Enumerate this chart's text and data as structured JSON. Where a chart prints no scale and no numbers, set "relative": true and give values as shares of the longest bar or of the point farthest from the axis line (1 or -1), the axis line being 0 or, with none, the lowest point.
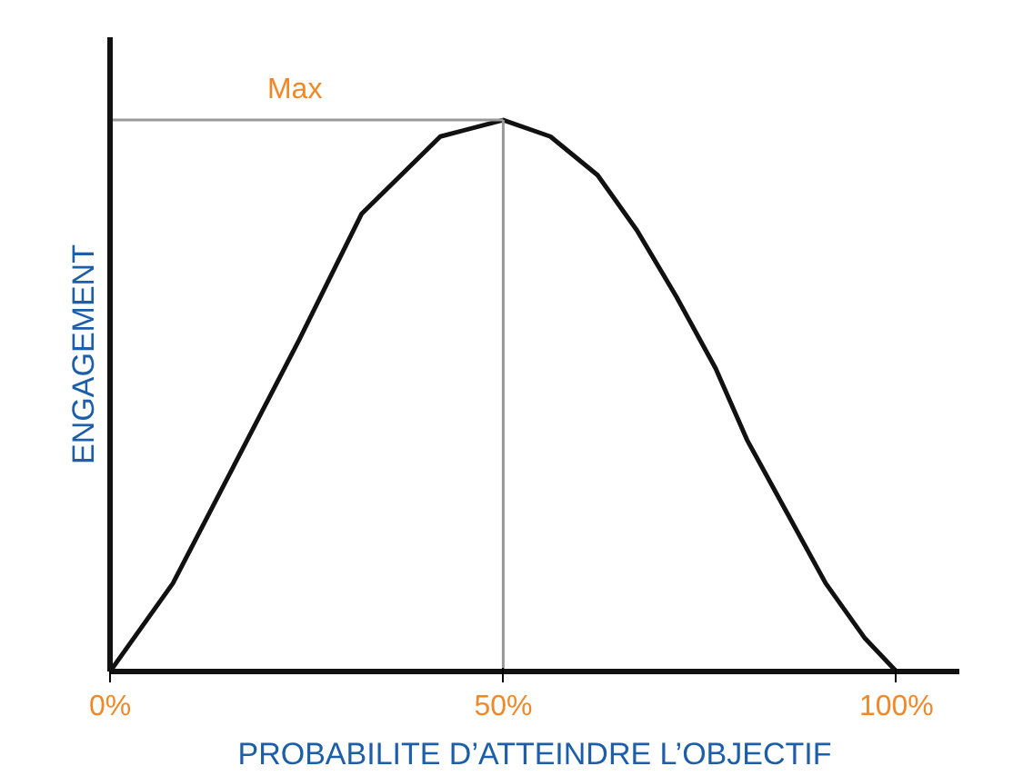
{
  "chart_data": {
    "type": "line",
    "relative": true,
    "xlabel": "PROBABILITE D’ATTEINDRE L’OBJECTIF",
    "ylabel": "ENGAGEMENT",
    "x": [
      0,
      8,
      16,
      24,
      32,
      42,
      50,
      56,
      62,
      67,
      72,
      77,
      81,
      86,
      91,
      96,
      100
    ],
    "series": [
      {
        "color": "#111111",
        "values": [
          0,
          0.16,
          0.38,
          0.6,
          0.83,
          0.97,
          1,
          0.97,
          0.9,
          0.8,
          0.68,
          0.55,
          0.42,
          0.29,
          0.16,
          0.06,
          0
        ]
      }
    ],
    "xlim": [
      0,
      108
    ],
    "xticks": [
      {
        "value": 0,
        "label": "0%"
      },
      {
        "value": 50,
        "label": "50%"
      },
      {
        "value": 100,
        "label": "100%"
      }
    ],
    "ref_lines": [
      {
        "axis": "y",
        "value": 1,
        "label": "Max",
        "color": "#999999"
      },
      {
        "axis": "x",
        "value": 50,
        "color": "#999999"
      }
    ],
    "grid": false,
    "marker": "none",
    "line_style": "solid"
  }
}
